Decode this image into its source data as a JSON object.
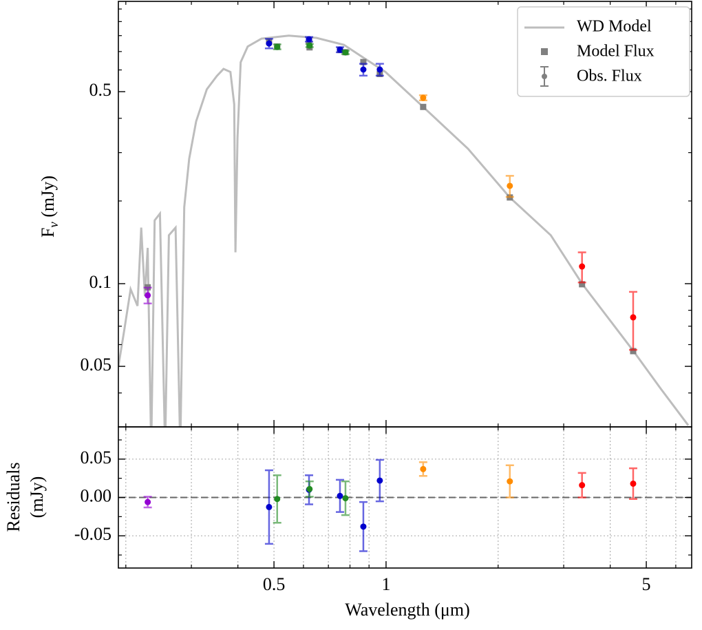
{
  "chart_data": [
    {
      "type": "sed",
      "ylabel": [
        "F",
        "ν",
        " (mJy)"
      ],
      "xlim": [
        0.191,
        6.62
      ],
      "ylim": [
        0.0301,
        1.066
      ],
      "xscale": "log",
      "yscale": "log",
      "xticks": [
        0.5,
        1,
        5
      ],
      "xminor_ticks": [
        0.2,
        0.3,
        0.4,
        0.6,
        0.7,
        0.8,
        0.9,
        2,
        3,
        4,
        6
      ],
      "yticks": [
        0.05,
        0.1,
        0.5
      ],
      "yminor_ticks": [
        0.04,
        0.06,
        0.07,
        0.08,
        0.09,
        0.2,
        0.3,
        0.4,
        0.6,
        0.7,
        0.8,
        0.9,
        1
      ],
      "legend_entries": [
        "WD Model",
        "Model Flux",
        "Obs. Flux"
      ],
      "legend_loc": "upper right",
      "model_curve": {
        "color": "#bdbdbd",
        "x": [
          0.191,
          0.198,
          0.206,
          0.215,
          0.22,
          0.225,
          0.229,
          0.234,
          0.239,
          0.247,
          0.255,
          0.261,
          0.272,
          0.28,
          0.287,
          0.296,
          0.309,
          0.33,
          0.351,
          0.366,
          0.382,
          0.391,
          0.394,
          0.399,
          0.407,
          0.425,
          0.463,
          0.548,
          0.65,
          0.771,
          0.877,
          0.996,
          1.258,
          1.66,
          2.15,
          2.77,
          3.36,
          4.61,
          5.47,
          6.48
        ],
        "y": [
          0.05,
          0.0676,
          0.0955,
          0.083,
          0.16,
          0.09,
          0.135,
          0.025,
          0.17,
          0.18,
          0.025,
          0.15,
          0.16,
          0.025,
          0.19,
          0.285,
          0.39,
          0.51,
          0.57,
          0.605,
          0.59,
          0.45,
          0.13,
          0.34,
          0.64,
          0.73,
          0.78,
          0.8,
          0.785,
          0.74,
          0.66,
          0.59,
          0.44,
          0.31,
          0.206,
          0.15,
          0.1,
          0.057,
          0.0414,
          0.0305
        ]
      },
      "model_flux_color": "#808080",
      "x": [
        0.229,
        0.485,
        0.51,
        0.621,
        0.623,
        0.752,
        0.778,
        0.869,
        0.962,
        1.258,
        2.15,
        3.36,
        4.61
      ],
      "flux": [
        0.0907,
        0.749,
        0.728,
        0.776,
        0.736,
        0.711,
        0.695,
        0.602,
        0.602,
        0.475,
        0.227,
        0.1155,
        0.0754
      ],
      "flux_err": [
        0.006,
        0.03,
        0.015,
        0.015,
        0.01,
        0.015,
        0.01,
        0.03,
        0.03,
        0.01,
        0.02,
        0.0145,
        0.018
      ],
      "model_flux": [
        0.097,
        0.761,
        0.73,
        0.766,
        0.725,
        0.709,
        0.696,
        0.641,
        0.58,
        0.44,
        0.206,
        0.0995,
        0.0568
      ],
      "colors": [
        "#9400d3",
        "#0000cd",
        "#228b22",
        "#0000cd",
        "#228b22",
        "#0000cd",
        "#228b22",
        "#0000cd",
        "#0000cd",
        "#ff8c00",
        "#ff8c00",
        "#ff0000",
        "#ff0000"
      ]
    },
    {
      "type": "residuals",
      "ylabel": [
        "Residuals",
        "(mJy)"
      ],
      "xlabel": "Wavelength (μm)",
      "xlim": [
        0.191,
        6.62
      ],
      "ylim": [
        -0.092,
        0.092
      ],
      "xscale": "log",
      "xticks": [
        0.5,
        1,
        5
      ],
      "xminor_ticks": [
        0.2,
        0.3,
        0.4,
        0.6,
        0.7,
        0.8,
        0.9,
        2,
        3,
        4,
        6
      ],
      "yticks": [
        -0.05,
        {
          "value": 0,
          "label": "0.00"
        },
        0.05
      ],
      "yminor_ticks": [
        -0.075,
        -0.025,
        0.025,
        0.075
      ],
      "grid": true,
      "hline": 0,
      "x": [
        0.229,
        0.485,
        0.51,
        0.621,
        0.623,
        0.752,
        0.778,
        0.869,
        0.962,
        1.258,
        2.15,
        3.36,
        4.61
      ],
      "values": [
        -0.006,
        -0.0125,
        -0.002,
        0.01,
        0.011,
        0.002,
        -0.001,
        -0.038,
        0.022,
        0.037,
        0.021,
        0.016,
        0.018
      ],
      "errors": [
        0.007,
        0.048,
        0.031,
        0.019,
        0.01,
        0.021,
        0.022,
        0.032,
        0.027,
        0.009,
        0.021,
        0.016,
        0.02
      ],
      "colors": [
        "#9400d3",
        "#0000cd",
        "#228b22",
        "#0000cd",
        "#228b22",
        "#0000cd",
        "#228b22",
        "#0000cd",
        "#0000cd",
        "#ff8c00",
        "#ff8c00",
        "#ff0000",
        "#ff0000"
      ]
    }
  ]
}
